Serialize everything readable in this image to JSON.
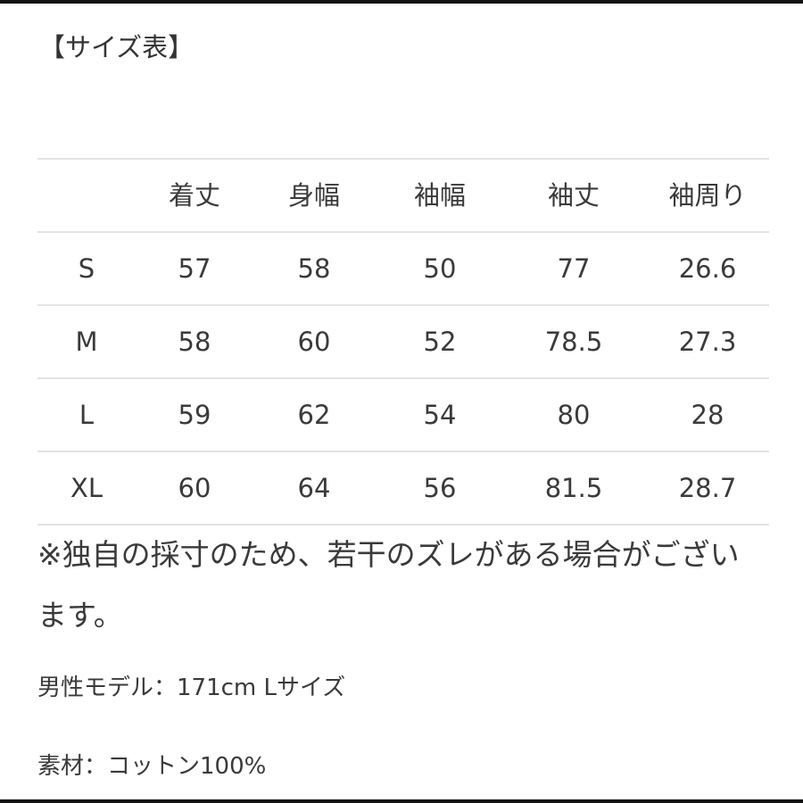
{
  "header": {
    "title": "【サイズ表】"
  },
  "table": {
    "columns": [
      "",
      "着丈",
      "身幅",
      "袖幅",
      "袖丈",
      "袖周り"
    ],
    "rows": [
      [
        "S",
        57,
        58,
        50,
        77,
        26.6
      ],
      [
        "M",
        58,
        60,
        52,
        78.5,
        27.3
      ],
      [
        "L",
        59,
        62,
        54,
        80,
        28
      ],
      [
        "XL",
        60,
        64,
        56,
        81.5,
        28.7
      ]
    ]
  },
  "notes": [
    "※独自の採寸のため、若干のズレがある場合がございます。",
    "男性モデル：171cm Lサイズ",
    "素材：コットン100%"
  ]
}
